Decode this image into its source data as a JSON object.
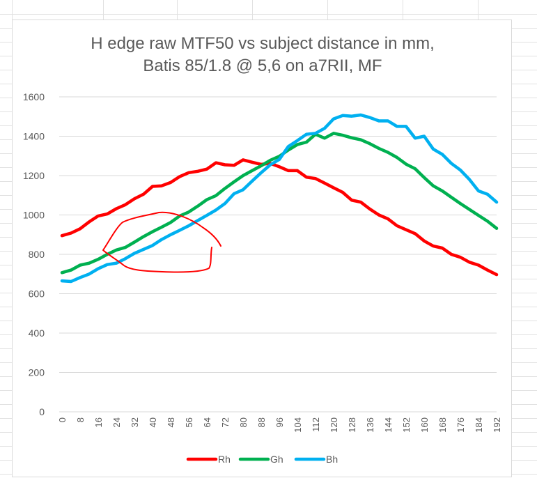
{
  "chart_data": {
    "type": "line",
    "title": "H edge raw MTF50 vs subject distance in mm,",
    "subtitle": "Batis 85/1.8 @ 5,6 on a7RII, MF",
    "xlabel": "",
    "ylabel": "",
    "ylim": [
      0,
      1600
    ],
    "yticks": [
      0,
      200,
      400,
      600,
      800,
      1000,
      1200,
      1400,
      1600
    ],
    "xticks": [
      0,
      8,
      16,
      24,
      32,
      40,
      48,
      56,
      64,
      72,
      80,
      88,
      96,
      104,
      112,
      120,
      128,
      136,
      144,
      152,
      160,
      168,
      176,
      184,
      192
    ],
    "grid": true,
    "legend_position": "bottom",
    "series": [
      {
        "name": "Rh",
        "color": "#ff0000",
        "x": [
          0,
          4,
          8,
          12,
          16,
          20,
          24,
          28,
          32,
          36,
          40,
          44,
          48,
          52,
          56,
          60,
          64,
          68,
          72,
          76,
          80,
          84,
          88,
          92,
          96,
          100,
          104,
          108,
          112,
          116,
          120,
          124,
          128,
          132,
          136,
          140,
          144,
          148,
          152,
          156,
          160,
          164,
          168,
          172,
          176,
          180,
          184,
          188,
          192
        ],
        "values": [
          895,
          908,
          930,
          965,
          995,
          1005,
          1032,
          1052,
          1082,
          1105,
          1145,
          1148,
          1165,
          1195,
          1215,
          1222,
          1233,
          1265,
          1255,
          1252,
          1280,
          1268,
          1257,
          1262,
          1245,
          1225,
          1225,
          1192,
          1185,
          1162,
          1138,
          1115,
          1075,
          1065,
          1030,
          1000,
          980,
          945,
          925,
          905,
          868,
          842,
          832,
          800,
          785,
          760,
          745,
          720,
          697
        ]
      },
      {
        "name": "Gh",
        "color": "#00b050",
        "x": [
          0,
          4,
          8,
          12,
          16,
          20,
          24,
          28,
          32,
          36,
          40,
          44,
          48,
          52,
          56,
          60,
          64,
          68,
          72,
          76,
          80,
          84,
          88,
          92,
          96,
          100,
          104,
          108,
          112,
          116,
          120,
          124,
          128,
          132,
          136,
          140,
          144,
          148,
          152,
          156,
          160,
          164,
          168,
          172,
          176,
          180,
          184,
          188,
          192
        ],
        "values": [
          707,
          720,
          745,
          755,
          775,
          800,
          822,
          835,
          862,
          890,
          915,
          938,
          962,
          995,
          1015,
          1045,
          1078,
          1098,
          1135,
          1168,
          1200,
          1225,
          1250,
          1278,
          1298,
          1330,
          1358,
          1370,
          1410,
          1390,
          1415,
          1405,
          1392,
          1382,
          1362,
          1338,
          1318,
          1292,
          1258,
          1235,
          1190,
          1148,
          1122,
          1090,
          1058,
          1028,
          998,
          968,
          932
        ]
      },
      {
        "name": "Bh",
        "color": "#00b0f0",
        "x": [
          0,
          4,
          8,
          12,
          16,
          20,
          24,
          28,
          32,
          36,
          40,
          44,
          48,
          52,
          56,
          60,
          64,
          68,
          72,
          76,
          80,
          84,
          88,
          92,
          96,
          100,
          104,
          108,
          112,
          116,
          120,
          124,
          128,
          132,
          136,
          140,
          144,
          148,
          152,
          156,
          160,
          164,
          168,
          172,
          176,
          180,
          184,
          188,
          192
        ],
        "values": [
          665,
          662,
          682,
          700,
          727,
          748,
          755,
          778,
          805,
          825,
          845,
          875,
          900,
          922,
          945,
          972,
          998,
          1025,
          1058,
          1108,
          1128,
          1172,
          1215,
          1255,
          1282,
          1348,
          1378,
          1410,
          1415,
          1440,
          1488,
          1505,
          1502,
          1508,
          1495,
          1478,
          1478,
          1450,
          1450,
          1390,
          1400,
          1335,
          1308,
          1262,
          1228,
          1180,
          1122,
          1105,
          1065
        ]
      }
    ]
  },
  "annotation": {
    "color": "#ff0000"
  }
}
